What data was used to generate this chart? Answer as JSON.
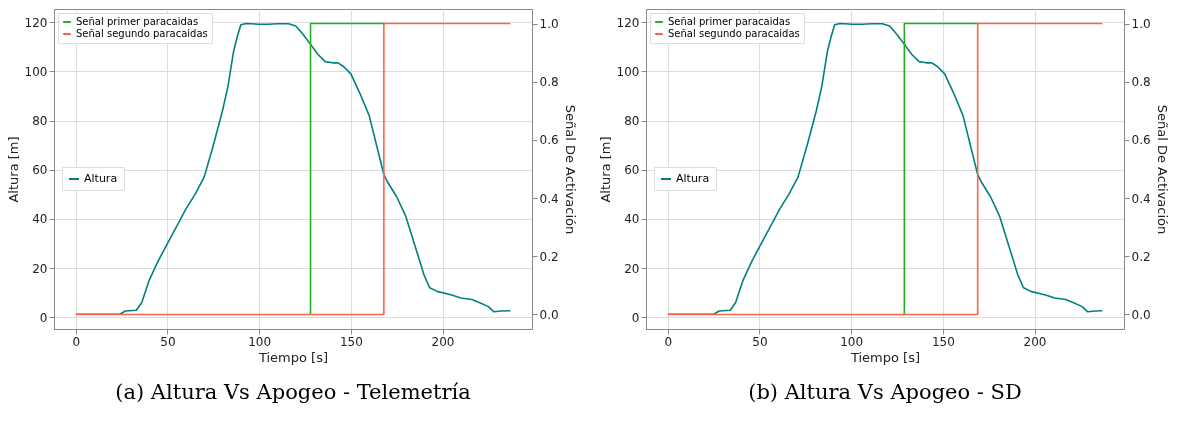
{
  "chart_data": [
    {
      "type": "line",
      "title": "(a) Altura Vs Apogeo - Telemetría",
      "xlabel": "Tiempo [s]",
      "ylabel": "Altura [m]",
      "y2label": "Señal De Activación",
      "xlim": [
        -11.9,
        248.8
      ],
      "xticks": [
        0,
        50,
        100,
        150,
        200
      ],
      "ylim": [
        -4.8,
        125.4
      ],
      "yticks": [
        0,
        20,
        40,
        60,
        80,
        100,
        120
      ],
      "y2lim": [
        -0.05,
        1.05
      ],
      "y2ticks": [
        {
          "value": 0,
          "label": "0.0"
        },
        {
          "value": 0.2,
          "label": "0.2"
        },
        {
          "value": 0.4,
          "label": "0.4"
        },
        {
          "value": 0.6,
          "label": "0.6"
        },
        {
          "value": 0.8,
          "label": "0.8"
        },
        {
          "value": 1,
          "label": "1.0"
        }
      ],
      "grid": true,
      "legend": "top left",
      "series": [
        {
          "name": "Altura",
          "color": "#008080",
          "x": [
            0,
            24,
            27,
            33,
            36,
            40,
            45,
            50,
            55,
            60,
            65,
            70,
            75,
            80,
            83,
            86,
            88,
            90,
            93,
            100,
            105,
            110,
            116,
            120,
            124,
            128,
            132,
            136,
            140,
            143,
            146,
            150,
            155,
            160,
            165,
            168,
            170,
            175,
            180,
            185,
            190,
            193,
            197,
            205,
            210,
            216,
            220,
            225,
            228,
            232,
            237
          ],
          "values": [
            1.2,
            1.2,
            2.5,
            2.8,
            6,
            15,
            23,
            30,
            37,
            44,
            50,
            57,
            70,
            84,
            94,
            108,
            114,
            119,
            119.5,
            119.2,
            119.2,
            119.4,
            119.4,
            118.5,
            115,
            111,
            107,
            104,
            103.5,
            103.5,
            102,
            99,
            91,
            82,
            67,
            58,
            55,
            49,
            41,
            29,
            17,
            12,
            10.5,
            9,
            7.8,
            7.2,
            6,
            4.3,
            2.2,
            2.5,
            2.6
          ]
        },
        {
          "name": "Señal primer paracaidas",
          "color": "#22b022",
          "type": "step",
          "axis": "y2",
          "x": [
            128,
            128,
            168
          ],
          "values": [
            0,
            1,
            1
          ]
        },
        {
          "name": "Señal segundo paracaidas",
          "color": "#ff6347",
          "type": "step",
          "axis": "y2",
          "x": [
            0,
            168,
            237
          ],
          "values": [
            0,
            1,
            1
          ]
        }
      ]
    },
    {
      "type": "line",
      "title": "(b) Altura Vs Apogeo - SD",
      "xlabel": "Tiempo [s]",
      "ylabel": "Altura [m]",
      "y2label": "Señal De Activación",
      "xlim": [
        -11.9,
        248.8
      ],
      "xticks": [
        0,
        50,
        100,
        150,
        200
      ],
      "ylim": [
        -4.8,
        125.4
      ],
      "yticks": [
        0,
        20,
        40,
        60,
        80,
        100,
        120
      ],
      "y2lim": [
        -0.05,
        1.05
      ],
      "y2ticks": [
        {
          "value": 0,
          "label": "0.0"
        },
        {
          "value": 0.2,
          "label": "0.2"
        },
        {
          "value": 0.4,
          "label": "0.4"
        },
        {
          "value": 0.6,
          "label": "0.6"
        },
        {
          "value": 0.8,
          "label": "0.8"
        },
        {
          "value": 1,
          "label": "1.0"
        }
      ],
      "grid": true,
      "legend": "top left",
      "series": [
        {
          "name": "Altura",
          "color": "#008080",
          "x": [
            0,
            25,
            28,
            34,
            37,
            41,
            46,
            51,
            56,
            61,
            66,
            71,
            76,
            81,
            84,
            87,
            89,
            91,
            94,
            101,
            106,
            111,
            117,
            121,
            125,
            129,
            133,
            137,
            141,
            144,
            147,
            151,
            156,
            161,
            166,
            169,
            171,
            176,
            181,
            186,
            191,
            194,
            198,
            206,
            211,
            217,
            221,
            226,
            229,
            233,
            237
          ],
          "values": [
            1.2,
            1.2,
            2.5,
            2.8,
            6,
            15,
            23,
            30,
            37,
            44,
            50,
            57,
            70,
            84,
            94,
            108,
            114,
            119,
            119.5,
            119.2,
            119.2,
            119.4,
            119.4,
            118.5,
            115,
            111,
            107,
            104,
            103.5,
            103.5,
            102,
            99,
            91,
            82,
            67,
            58,
            55,
            49,
            41,
            29,
            17,
            12,
            10.5,
            9,
            7.8,
            7.2,
            6,
            4.3,
            2.2,
            2.5,
            2.6
          ]
        },
        {
          "name": "Señal primer paracaidas",
          "color": "#22b022",
          "type": "step",
          "axis": "y2",
          "x": [
            129,
            129,
            169
          ],
          "values": [
            0,
            1,
            1
          ]
        },
        {
          "name": "Señal segundo paracaidas",
          "color": "#ff6347",
          "type": "step",
          "axis": "y2",
          "x": [
            0,
            169,
            237
          ],
          "values": [
            0,
            1,
            1
          ]
        }
      ]
    }
  ]
}
